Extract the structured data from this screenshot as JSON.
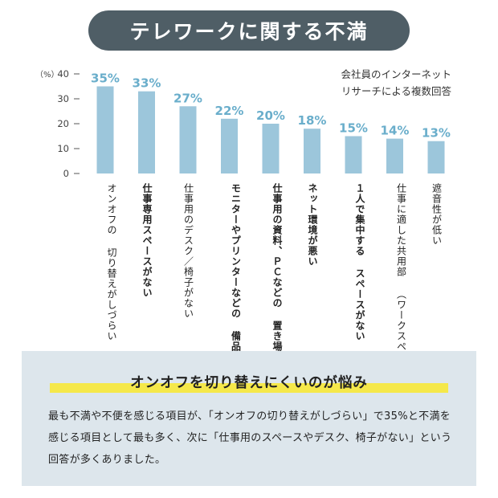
{
  "header": {
    "title": "テレワークに関する不満"
  },
  "note": {
    "line1": "会社員のインターネット",
    "line2": "リサーチによる複数回答"
  },
  "chart_data": {
    "type": "bar",
    "unit_label": "（%）",
    "ylim": [
      0,
      40
    ],
    "yticks": [
      0,
      10,
      20,
      30,
      40
    ],
    "grid": false,
    "bar_color": "#9cc6db",
    "value_label_color": "#6aaecb",
    "categories": [
      "オンオフの\n切り替えがしづらい",
      "仕事専用スペースがない",
      "仕事用のデスク／椅子がない",
      "モニターやプリンターなどの\n備品が十分ではない",
      "仕事用の資料、ＰＣなどの\n置き場、収納スペースがない",
      "ネット環境が悪い",
      "１人で集中する\nスペースがない",
      "仕事に適した共用部\n（ワークスペース）が充実していない",
      "遮音性が低い"
    ],
    "bold_categories": [
      1,
      3,
      4,
      5,
      6
    ],
    "values": [
      35,
      33,
      27,
      22,
      20,
      18,
      15,
      14,
      13
    ],
    "value_labels": [
      "35%",
      "33%",
      "27%",
      "22%",
      "20%",
      "18%",
      "15%",
      "14%",
      "13%"
    ]
  },
  "summary": {
    "headline": "オンオフを切り替えにくいのが悩み",
    "body": "最も不満や不便を感じる項目が、「オンオフの切り替えがしづらい」で35%と不満を感じる項目として最も多く、次に「仕事用のスペースやデスク、椅子がない」という回答が多くありました。",
    "highlight_color": "#f5e84a",
    "panel_color": "#dde6ec"
  }
}
